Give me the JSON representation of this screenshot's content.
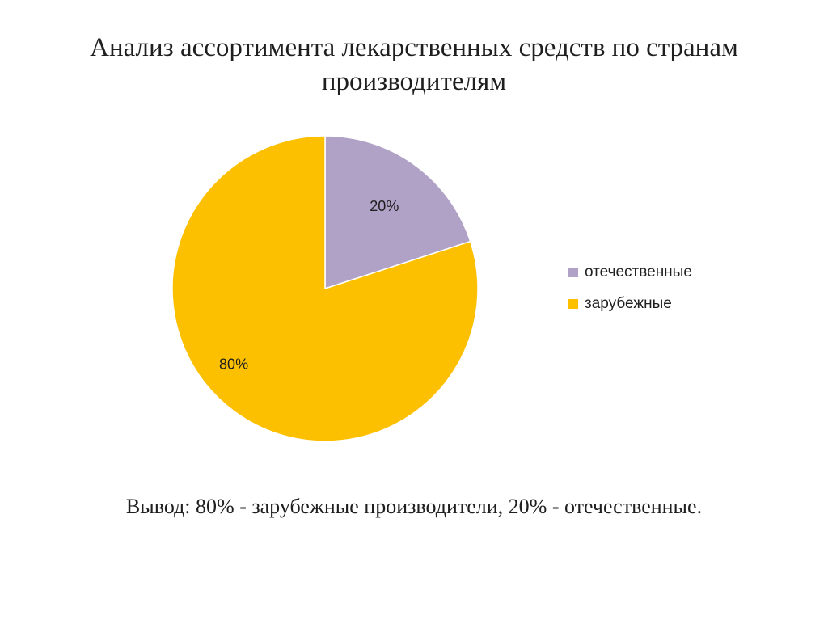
{
  "slide": {
    "title": "Анализ ассортимента лекарственных средств по странам производителям",
    "conclusion": "Вывод: 80% - зарубежные производители, 20% - отечественные."
  },
  "chart_data": {
    "type": "pie",
    "title": "",
    "categories": [
      "отечественные",
      "зарубежные"
    ],
    "values": [
      20,
      80
    ],
    "data_labels": [
      "20%",
      "80%"
    ],
    "colors": [
      "#b0a2c6",
      "#fcc000"
    ],
    "legend_placement": "right",
    "start_angle_deg": 0,
    "direction": "clockwise"
  }
}
